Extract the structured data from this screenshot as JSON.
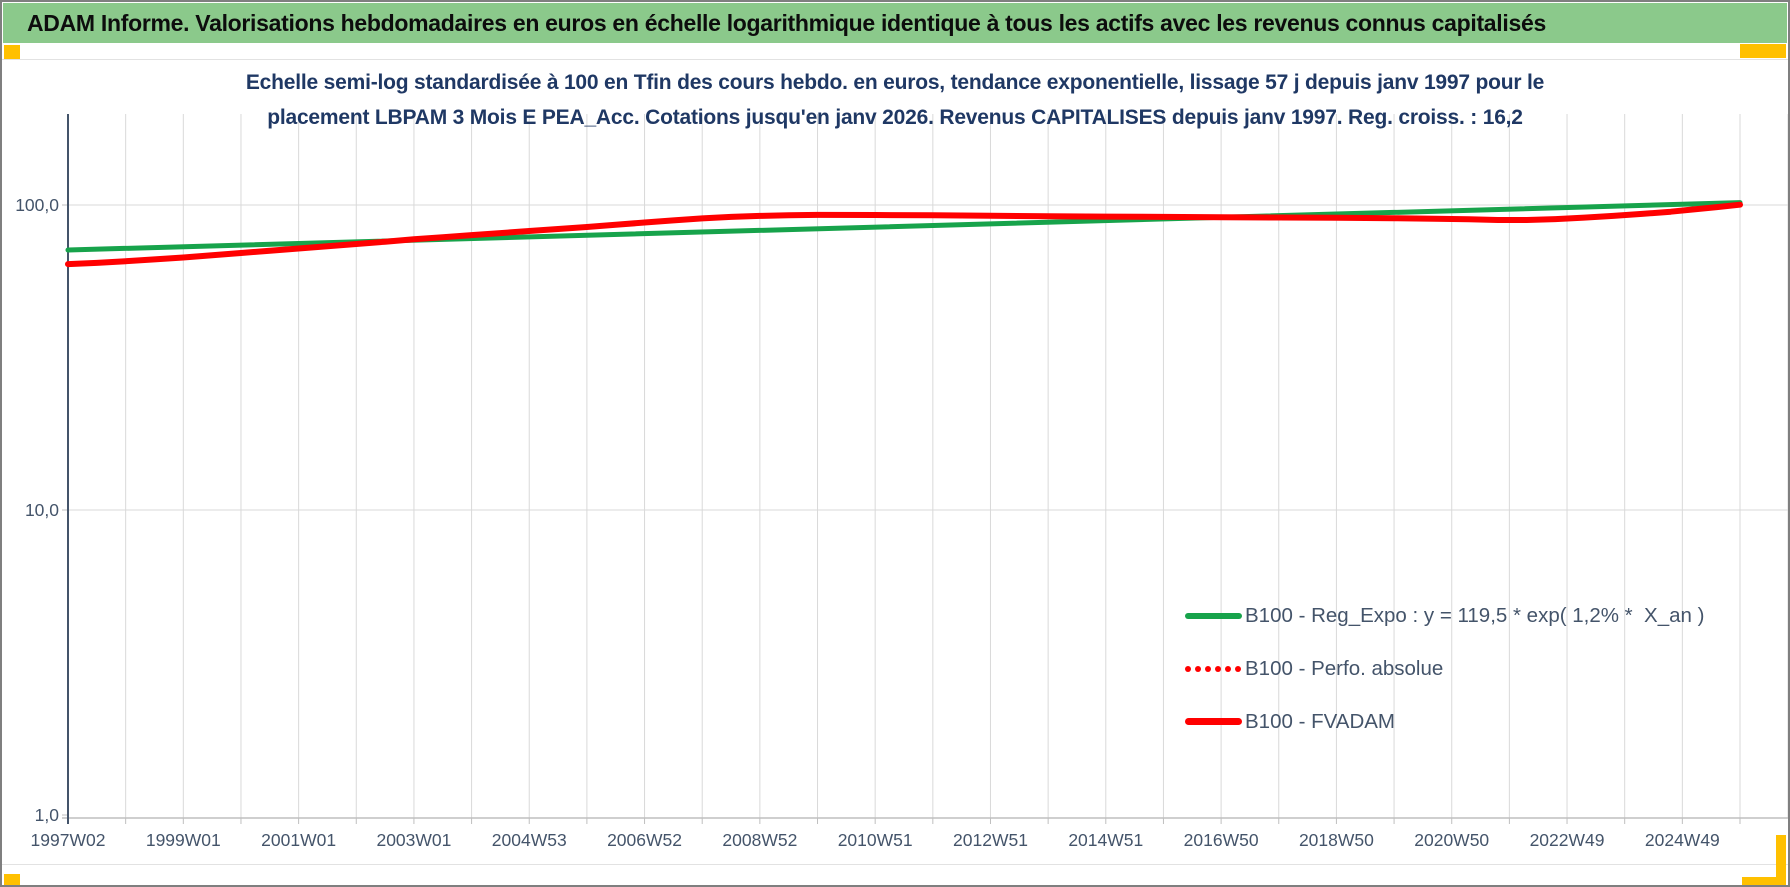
{
  "theme": {
    "header_bg": "#8BC98B",
    "accent": "#FFC000",
    "page_bg": "#FFFFFF",
    "border_color": "#7F7F7F",
    "title_color": "#1F3864",
    "axis_text_color": "#44546A",
    "grid_color": "#D9D9D9",
    "y_axis_line_color": "#44546A",
    "bottom_axis_color": "#BFBFBF",
    "green_line": "#17A34B",
    "red_line": "#FF0000"
  },
  "header": {
    "title": "ADAM Informe. Valorisations hebdomadaires en euros en échelle logarithmique identique à tous les actifs avec les revenus connus capitalisés"
  },
  "chart_data": {
    "type": "line",
    "title_line1": "Echelle semi-log standardisée à 100 en Tfin des cours hebdo. en euros, tendance exponentielle, lissage 57 j depuis janv 1997 pour le",
    "title_line2": "placement LBPAM 3 Mois E PEA_Acc. Cotations jusqu'en janv 2026. Revenus CAPITALISES depuis janv 1997. Reg. croiss. : 16,2",
    "x_axis": {
      "tick_labels": [
        "1997W02",
        "1999W01",
        "2001W01",
        "2003W01",
        "2004W53",
        "2006W52",
        "2008W52",
        "2010W51",
        "2012W51",
        "2014W51",
        "2016W50",
        "2018W50",
        "2020W50",
        "2022W49",
        "2024W49"
      ],
      "tick_step_years": 2,
      "start_year": 1997,
      "data_end_year": 2026,
      "plot_end_year": 2026.8,
      "gridline_every_years": 1
    },
    "y_axis": {
      "scale": "log10",
      "tick_labels": [
        "100,0",
        "10,0",
        "1,0"
      ],
      "tick_values": [
        100,
        10,
        1
      ],
      "ylim": [
        1.0,
        200
      ],
      "gridlines_at": [
        100,
        10
      ]
    },
    "legend": {
      "position": "inside-right",
      "entries": [
        {
          "label": "B100 - Reg_Expo : y = 119,5 * exp( 1,2% *  X_an )",
          "color": "#17A34B",
          "style": "solid",
          "thickness": 6
        },
        {
          "label": "B100 - Perfo. absolue",
          "color": "#FF0000",
          "style": "dotted",
          "thickness": 6
        },
        {
          "label": "B100 - FVADAM",
          "color": "#FF0000",
          "style": "solid",
          "thickness": 7
        }
      ]
    },
    "series": [
      {
        "name": "B100 - Reg_Expo : y = 119,5 * exp( 1,2% *  X_an )",
        "color": "#17A34B",
        "style": "solid",
        "width": 5,
        "points": [
          [
            1997,
            71.2
          ],
          [
            2026,
            101.8
          ]
        ]
      },
      {
        "name": "B100 - Perfo. absolue",
        "color": "#FF0000",
        "style": "dotted",
        "width": 3,
        "points_ref": "B100 - FVADAM",
        "note": "coincides with B100 - FVADAM, hidden behind it"
      },
      {
        "name": "B100 - FVADAM",
        "color": "#FF0000",
        "style": "solid",
        "width": 6,
        "points": [
          [
            1997,
            64.0
          ],
          [
            1997.5,
            64.6
          ],
          [
            1998,
            65.4
          ],
          [
            1998.5,
            66.3
          ],
          [
            1999,
            67.3
          ],
          [
            1999.5,
            68.4
          ],
          [
            2000,
            69.6
          ],
          [
            2000.5,
            70.8
          ],
          [
            2001,
            72.0
          ],
          [
            2001.5,
            73.2
          ],
          [
            2002,
            74.5
          ],
          [
            2002.5,
            75.8
          ],
          [
            2003,
            77.2
          ],
          [
            2003.5,
            78.4
          ],
          [
            2004,
            79.7
          ],
          [
            2004.5,
            80.9
          ],
          [
            2005,
            82.2
          ],
          [
            2005.5,
            83.4
          ],
          [
            2006,
            84.7
          ],
          [
            2006.5,
            86.1
          ],
          [
            2007,
            87.6
          ],
          [
            2007.5,
            89.0
          ],
          [
            2008,
            90.4
          ],
          [
            2008.5,
            91.4
          ],
          [
            2009,
            92.1
          ],
          [
            2009.5,
            92.5
          ],
          [
            2010,
            92.8
          ],
          [
            2011,
            92.7
          ],
          [
            2012,
            92.5
          ],
          [
            2013,
            92.2
          ],
          [
            2014,
            91.9
          ],
          [
            2015,
            91.6
          ],
          [
            2016,
            91.4
          ],
          [
            2017,
            91.2
          ],
          [
            2018,
            91.0
          ],
          [
            2019,
            90.8
          ],
          [
            2020,
            90.5
          ],
          [
            2020.7,
            90.2
          ],
          [
            2021.3,
            89.8
          ],
          [
            2021.8,
            89.3
          ],
          [
            2022.3,
            89.3
          ],
          [
            2022.8,
            89.9
          ],
          [
            2023.3,
            90.9
          ],
          [
            2023.8,
            92.1
          ],
          [
            2024.3,
            93.5
          ],
          [
            2024.8,
            95.1
          ],
          [
            2025.2,
            96.7
          ],
          [
            2025.6,
            98.4
          ],
          [
            2026,
            100.2
          ]
        ]
      }
    ]
  }
}
